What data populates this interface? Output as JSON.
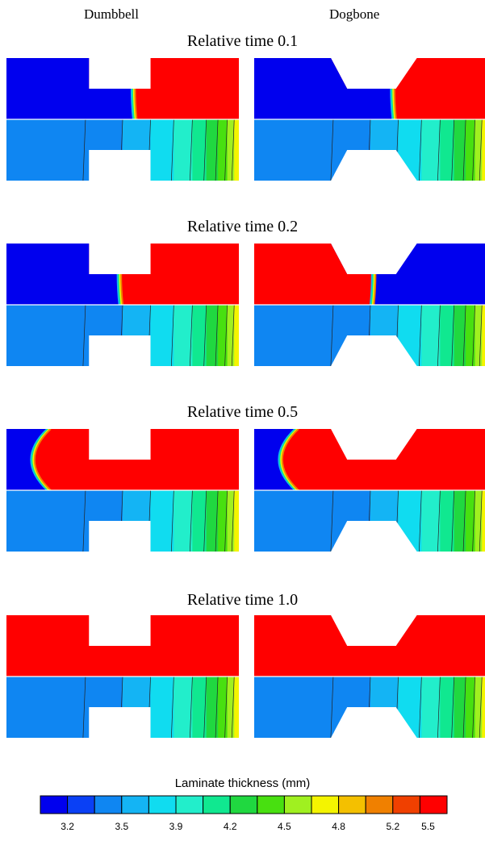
{
  "columns": {
    "left": "Dumbbell",
    "right": "Dogbone"
  },
  "rows": [
    {
      "label": "Relative time 0.1",
      "left_front": 0.55,
      "right_front": 0.6,
      "right_swap": false
    },
    {
      "label": "Relative time 0.2",
      "left_front": 0.49,
      "right_front": 0.51,
      "right_swap": true
    },
    {
      "label": "Relative time 0.5",
      "left_front": 0.18,
      "right_front": 0.18,
      "right_swap": false
    },
    {
      "label": "Relative time 1.0",
      "left_front": 0.0,
      "right_front": 0.0,
      "right_swap": false
    }
  ],
  "colorbar": {
    "title": "Laminate thickness (mm)",
    "colors": [
      "#0000ee",
      "#0a40f5",
      "#0f86f2",
      "#14b4f4",
      "#10dcf0",
      "#22eecb",
      "#10e890",
      "#20d840",
      "#48e010",
      "#a0f020",
      "#f4f400",
      "#f4c000",
      "#f08000",
      "#f04000",
      "#ff0000"
    ],
    "ticks": [
      "3.2",
      "3.5",
      "3.9",
      "4.2",
      "4.5",
      "4.8",
      "5.2",
      "5.5"
    ]
  }
}
